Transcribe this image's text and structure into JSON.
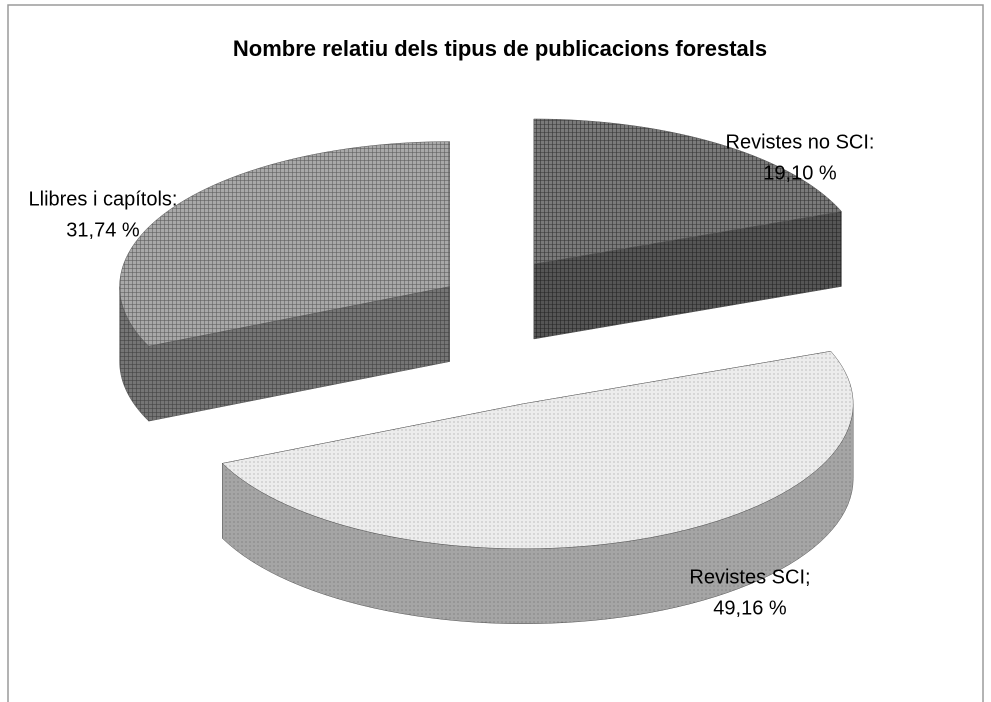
{
  "chart_data": {
    "type": "pie3d",
    "title": "Nombre relatiu dels tipus de publicacions forestals",
    "categories": [
      "Revistes no SCI:",
      "Revistes SCI;",
      "Llibres i capítols:"
    ],
    "values": [
      19.1,
      49.16,
      31.74
    ],
    "value_labels": [
      "19,10 %",
      "49,16 %",
      "31,74 %"
    ],
    "colors": [
      "#7a7a7a",
      "#ececec",
      "#a8a8a8"
    ]
  }
}
